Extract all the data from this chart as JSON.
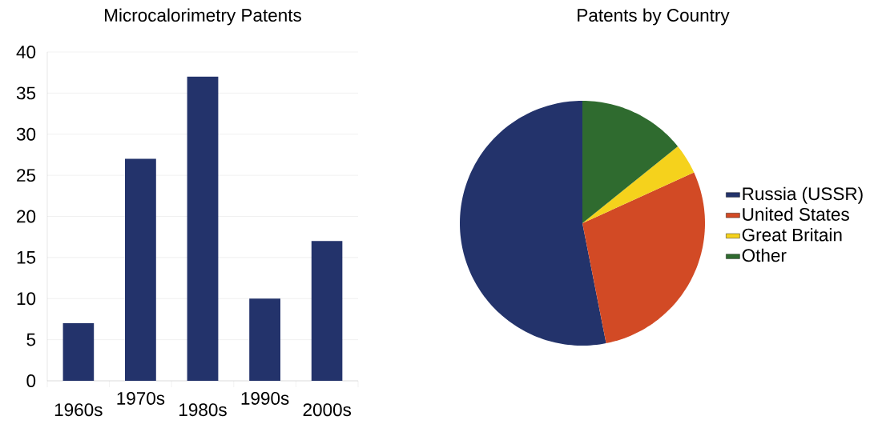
{
  "chart_data": [
    {
      "type": "bar",
      "title": "Microcalorimetry Patents",
      "categories": [
        "1960s",
        "1970s",
        "1980s",
        "1990s",
        "2000s"
      ],
      "values": [
        7,
        27,
        37,
        10,
        17
      ],
      "color": "#23336b",
      "ylim": [
        0,
        40
      ],
      "yticks": [
        0,
        5,
        10,
        15,
        20,
        25,
        30,
        35,
        40
      ],
      "grid": "y"
    },
    {
      "type": "pie",
      "title": "Patents by Country",
      "categories": [
        "Russia (USSR)",
        "United States",
        "Great Britain",
        "Other"
      ],
      "values": [
        53.1,
        28.7,
        4.0,
        14.2
      ],
      "colors": [
        "#23336b",
        "#d24a25",
        "#f5d21c",
        "#2f6b2f"
      ],
      "legend": "right"
    }
  ]
}
